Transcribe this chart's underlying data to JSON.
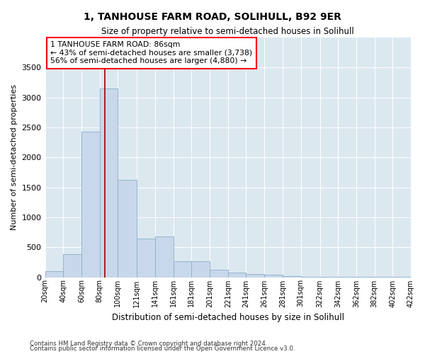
{
  "title": "1, TANHOUSE FARM ROAD, SOLIHULL, B92 9ER",
  "subtitle": "Size of property relative to semi-detached houses in Solihull",
  "xlabel": "Distribution of semi-detached houses by size in Solihull",
  "ylabel": "Number of semi-detached properties",
  "footnote1": "Contains HM Land Registry data © Crown copyright and database right 2024.",
  "footnote2": "Contains public sector information licensed under the Open Government Licence v3.0.",
  "property_size": 86,
  "annotation_title": "1 TANHOUSE FARM ROAD: 86sqm",
  "annotation_line1": "← 43% of semi-detached houses are smaller (3,738)",
  "annotation_line2": "56% of semi-detached houses are larger (4,880) →",
  "bar_color": "#c8d8ea",
  "bar_edge_color": "#8aafc8",
  "vline_color": "#990000",
  "annotation_box_color": "white",
  "annotation_box_edge": "red",
  "plot_bg_color": "#dce8f0",
  "fig_bg_color": "white",
  "ylim": [
    0,
    4000
  ],
  "yticks": [
    0,
    500,
    1000,
    1500,
    2000,
    2500,
    3000,
    3500
  ],
  "bin_edges": [
    20,
    40,
    60,
    80,
    100,
    121,
    141,
    161,
    181,
    201,
    221,
    241,
    261,
    281,
    301,
    322,
    342,
    362,
    382,
    402,
    422
  ],
  "bin_labels": [
    "20sqm",
    "40sqm",
    "60sqm",
    "80sqm",
    "100sqm",
    "121sqm",
    "141sqm",
    "161sqm",
    "181sqm",
    "201sqm",
    "221sqm",
    "241sqm",
    "261sqm",
    "281sqm",
    "301sqm",
    "322sqm",
    "342sqm",
    "362sqm",
    "382sqm",
    "402sqm",
    "422sqm"
  ],
  "bar_heights": [
    100,
    380,
    2430,
    3150,
    1620,
    650,
    680,
    270,
    265,
    120,
    75,
    55,
    40,
    15,
    10,
    8,
    5,
    3,
    2,
    1
  ]
}
